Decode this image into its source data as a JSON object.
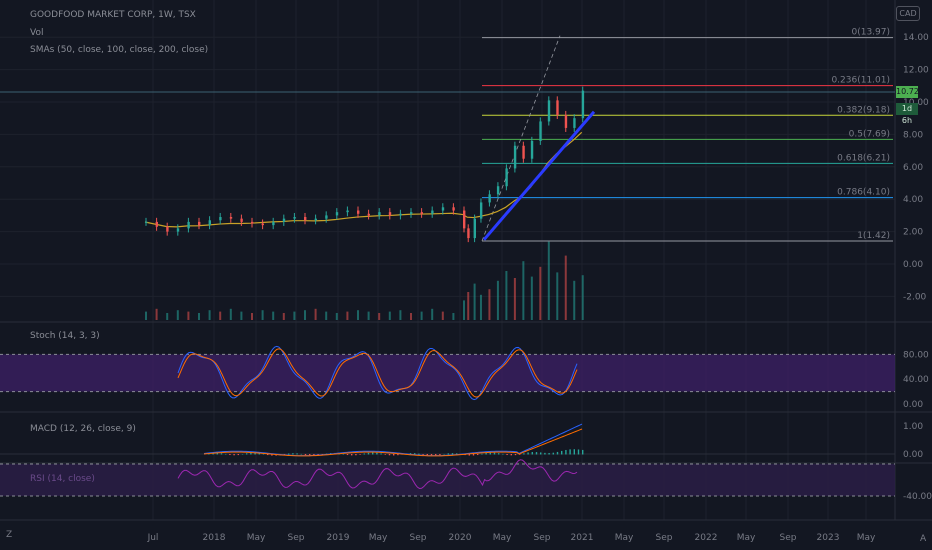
{
  "header": {
    "symbol": "GOODFOOD MARKET CORP, 1W, TSX",
    "vol": "Vol",
    "smas": "SMAs (50, close, 100, close, 200, close)",
    "currency": "CAD"
  },
  "indicators": {
    "stoch": "Stoch (14, 3, 3)",
    "macd": "MACD (12, 26, close, 9)",
    "rsi": "RSI (14, close)"
  },
  "price_badges": {
    "last": "10.72",
    "countdown": "1d 6h"
  },
  "bottom_icon": "Z",
  "colors": {
    "background": "#131722",
    "up": "#26a69a",
    "down": "#ef5350",
    "sma": "#c9a227",
    "trendline": "#2a3bff",
    "stoch_fill": "#3b1f63",
    "rsi_fill": "#2a1d45"
  },
  "chart_data": {
    "type": "candlestick",
    "x_tick_labels": [
      "Jul",
      "2018",
      "May",
      "Sep",
      "2019",
      "May",
      "Sep",
      "2020",
      "May",
      "Sep",
      "2021",
      "May",
      "Sep",
      "2022",
      "May",
      "Sep",
      "2023",
      "May"
    ],
    "y_tick_labels": [
      "14.00",
      "12.00",
      "10.00",
      "8.00",
      "6.00",
      "4.00",
      "2.00",
      "0.00",
      "-2.00"
    ],
    "ylim": [
      -2.5,
      14.5
    ],
    "price_series": [
      {
        "x": 0,
        "y": 2.6
      },
      {
        "x": 5,
        "y": 2.3
      },
      {
        "x": 10,
        "y": 2.0
      },
      {
        "x": 15,
        "y": 2.2
      },
      {
        "x": 20,
        "y": 2.6
      },
      {
        "x": 25,
        "y": 2.4
      },
      {
        "x": 30,
        "y": 2.7
      },
      {
        "x": 35,
        "y": 2.9
      },
      {
        "x": 40,
        "y": 2.8
      },
      {
        "x": 45,
        "y": 2.6
      },
      {
        "x": 50,
        "y": 2.5
      },
      {
        "x": 55,
        "y": 2.4
      },
      {
        "x": 60,
        "y": 2.6
      },
      {
        "x": 65,
        "y": 2.8
      },
      {
        "x": 70,
        "y": 2.9
      },
      {
        "x": 75,
        "y": 2.7
      },
      {
        "x": 80,
        "y": 2.8
      },
      {
        "x": 85,
        "y": 3.0
      },
      {
        "x": 90,
        "y": 3.2
      },
      {
        "x": 95,
        "y": 3.3
      },
      {
        "x": 100,
        "y": 3.1
      },
      {
        "x": 105,
        "y": 3.0
      },
      {
        "x": 110,
        "y": 3.2
      },
      {
        "x": 115,
        "y": 3.0
      },
      {
        "x": 120,
        "y": 3.1
      },
      {
        "x": 125,
        "y": 3.2
      },
      {
        "x": 130,
        "y": 3.1
      },
      {
        "x": 135,
        "y": 3.3
      },
      {
        "x": 140,
        "y": 3.5
      },
      {
        "x": 145,
        "y": 3.3
      },
      {
        "x": 150,
        "y": 2.2
      },
      {
        "x": 152,
        "y": 1.6
      },
      {
        "x": 155,
        "y": 2.8
      },
      {
        "x": 158,
        "y": 3.8
      },
      {
        "x": 162,
        "y": 4.3
      },
      {
        "x": 166,
        "y": 4.8
      },
      {
        "x": 170,
        "y": 5.9
      },
      {
        "x": 174,
        "y": 7.3
      },
      {
        "x": 178,
        "y": 6.5
      },
      {
        "x": 182,
        "y": 7.6
      },
      {
        "x": 186,
        "y": 8.8
      },
      {
        "x": 190,
        "y": 10.1
      },
      {
        "x": 194,
        "y": 9.2
      },
      {
        "x": 198,
        "y": 8.4
      },
      {
        "x": 202,
        "y": 9.0
      },
      {
        "x": 206,
        "y": 10.7
      }
    ],
    "volume": [
      0.6,
      0.8,
      0.5,
      0.7,
      0.6,
      0.5,
      0.7,
      0.6,
      0.8,
      0.6,
      0.5,
      0.7,
      0.6,
      0.5,
      0.6,
      0.7,
      0.8,
      0.6,
      0.5,
      0.6,
      0.7,
      0.6,
      0.5,
      0.6,
      0.7,
      0.5,
      0.6,
      0.8,
      0.6,
      0.5,
      1.4,
      2.0,
      2.6,
      1.8,
      2.2,
      2.8,
      3.5,
      3.0,
      4.2,
      3.1,
      3.8,
      5.6,
      3.4,
      4.6,
      2.8,
      3.2
    ],
    "fib_levels": [
      {
        "ratio": "0",
        "label": "0(13.97)",
        "value": 13.97,
        "color": "#9598a1"
      },
      {
        "ratio": "0.236",
        "label": "0.236(11.01)",
        "value": 11.01,
        "color": "#f23645"
      },
      {
        "ratio": "0.382",
        "label": "0.382(9.18)",
        "value": 9.18,
        "color": "#c8d53a"
      },
      {
        "ratio": "0.5",
        "label": "0.5(7.69)",
        "value": 7.69,
        "color": "#4caf50"
      },
      {
        "ratio": "0.618",
        "label": "0.618(6.21)",
        "value": 6.21,
        "color": "#26a69a"
      },
      {
        "ratio": "0.786",
        "label": "0.786(4.10)",
        "value": 4.1,
        "color": "#2196f3"
      },
      {
        "ratio": "1",
        "label": "1(1.42)",
        "value": 1.42,
        "color": "#9598a1"
      }
    ],
    "stoch": {
      "y_tick_labels": [
        "80.00",
        "40.00",
        "0.00"
      ],
      "upper": 80,
      "lower": 20
    },
    "macd": {
      "y_tick_labels": [
        "1.00",
        "0.00"
      ]
    },
    "rsi": {
      "y_tick_labels": [
        "-40.00"
      ],
      "upper": 70,
      "lower": 30
    }
  }
}
